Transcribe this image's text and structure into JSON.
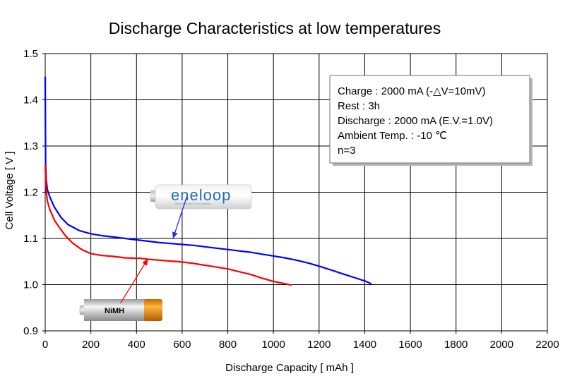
{
  "chart_data": {
    "type": "line",
    "title": "Discharge Characteristics at low temperatures",
    "xlabel": "Discharge Capacity [ mAh ]",
    "ylabel": "Cell Voltage [ V ]",
    "xlim": [
      0,
      2200
    ],
    "ylim": [
      0.9,
      1.5
    ],
    "x_ticks": [
      0,
      200,
      400,
      600,
      800,
      1000,
      1200,
      1400,
      1600,
      1800,
      2000,
      2200
    ],
    "y_ticks": [
      0.9,
      1.0,
      1.1,
      1.2,
      1.3,
      1.4,
      1.5
    ],
    "y_tick_labels": [
      "0.9",
      "1.0",
      "1.1",
      "1.2",
      "1.3",
      "1.4",
      "1.5"
    ],
    "grid": true,
    "series": [
      {
        "name": "eneloop",
        "color": "#0000ff",
        "points": [
          [
            0,
            1.45
          ],
          [
            2,
            1.26
          ],
          [
            5,
            1.225
          ],
          [
            10,
            1.205
          ],
          [
            20,
            1.19
          ],
          [
            40,
            1.168
          ],
          [
            70,
            1.145
          ],
          [
            100,
            1.13
          ],
          [
            150,
            1.117
          ],
          [
            200,
            1.11
          ],
          [
            250,
            1.106
          ],
          [
            300,
            1.103
          ],
          [
            350,
            1.1
          ],
          [
            400,
            1.097
          ],
          [
            450,
            1.094
          ],
          [
            500,
            1.091
          ],
          [
            550,
            1.089
          ],
          [
            600,
            1.087
          ],
          [
            650,
            1.085
          ],
          [
            700,
            1.082
          ],
          [
            750,
            1.079
          ],
          [
            800,
            1.076
          ],
          [
            850,
            1.073
          ],
          [
            900,
            1.07
          ],
          [
            950,
            1.066
          ],
          [
            1000,
            1.062
          ],
          [
            1050,
            1.058
          ],
          [
            1100,
            1.053
          ],
          [
            1150,
            1.047
          ],
          [
            1200,
            1.04
          ],
          [
            1250,
            1.032
          ],
          [
            1300,
            1.024
          ],
          [
            1350,
            1.016
          ],
          [
            1400,
            1.008
          ],
          [
            1420,
            1.004
          ],
          [
            1430,
            1.0
          ]
        ]
      },
      {
        "name": "NiMH",
        "color": "#ff0000",
        "points": [
          [
            0,
            1.26
          ],
          [
            5,
            1.2
          ],
          [
            10,
            1.18
          ],
          [
            20,
            1.163
          ],
          [
            40,
            1.14
          ],
          [
            60,
            1.125
          ],
          [
            90,
            1.105
          ],
          [
            120,
            1.09
          ],
          [
            160,
            1.076
          ],
          [
            200,
            1.067
          ],
          [
            250,
            1.063
          ],
          [
            300,
            1.061
          ],
          [
            350,
            1.058
          ],
          [
            400,
            1.057
          ],
          [
            420,
            1.057
          ],
          [
            450,
            1.055
          ],
          [
            500,
            1.053
          ],
          [
            550,
            1.051
          ],
          [
            600,
            1.049
          ],
          [
            650,
            1.046
          ],
          [
            700,
            1.042
          ],
          [
            750,
            1.038
          ],
          [
            800,
            1.034
          ],
          [
            850,
            1.028
          ],
          [
            900,
            1.022
          ],
          [
            950,
            1.014
          ],
          [
            1000,
            1.007
          ],
          [
            1050,
            1.002
          ],
          [
            1080,
            0.999
          ]
        ]
      }
    ]
  },
  "info_box": {
    "lines": [
      "Charge : 2000 mA (-△V=10mV)",
      "Rest : 3h",
      "Discharge : 2000 mA (E.V.=1.0V)",
      "Ambient Temp. : -10 ℃",
      "n=3"
    ]
  },
  "battery_labels": {
    "eneloop": {
      "brand": "eneloop",
      "subtitle": "Rechargeable Ni-MH Battery",
      "arrow_target": [
        560,
        1.1
      ],
      "arrow_from": [
        620,
        1.19
      ]
    },
    "nimh": {
      "label": "NiMH",
      "arrow_target": [
        450,
        1.056
      ],
      "arrow_from": [
        330,
        0.96
      ]
    }
  }
}
